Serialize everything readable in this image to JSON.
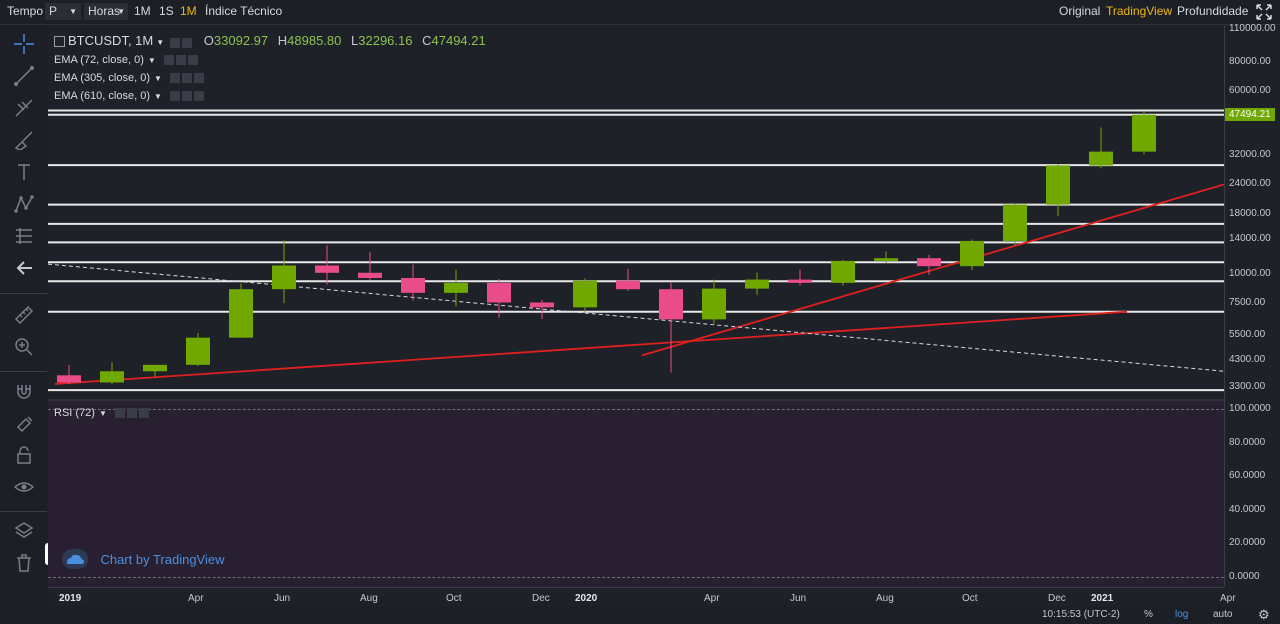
{
  "toolbar": {
    "tempo": "Tempo",
    "interval_value": "P",
    "horas": "Horas",
    "btn_1m_lower": "1M",
    "btn_1s": "1S",
    "btn_1m_active": "1M",
    "indice": "Índice Técnico",
    "original": "Original",
    "tradingview": "TradingView",
    "profundidade": "Profundidade"
  },
  "legend": {
    "symbol": "BTCUSDT, 1M",
    "o_label": "O",
    "o_value": "33092.97",
    "h_label": "H",
    "h_value": "48985.80",
    "l_label": "L",
    "l_value": "32296.16",
    "c_label": "C",
    "c_value": "47494.21",
    "ema1": "EMA (72, close, 0)",
    "ema2": "EMA (305, close, 0)",
    "ema3": "EMA (610, close, 0)",
    "rsi": "RSI (72)"
  },
  "price_axis": [
    "110000.00",
    "80000.00",
    "60000.00",
    "47494.21",
    "32000.00",
    "24000.00",
    "18000.00",
    "14000.00",
    "10000.00",
    "7500.00",
    "5500.00",
    "4300.00",
    "3300.00"
  ],
  "rsi_axis": [
    "100.0000",
    "80.0000",
    "60.0000",
    "40.0000",
    "20.0000",
    "0.0000"
  ],
  "time_axis": [
    {
      "label": "2019",
      "bold": true
    },
    {
      "label": "Apr",
      "bold": false
    },
    {
      "label": "Jun",
      "bold": false
    },
    {
      "label": "Aug",
      "bold": false
    },
    {
      "label": "Oct",
      "bold": false
    },
    {
      "label": "Dec",
      "bold": false
    },
    {
      "label": "2020",
      "bold": true
    },
    {
      "label": "Apr",
      "bold": false
    },
    {
      "label": "Jun",
      "bold": false
    },
    {
      "label": "Aug",
      "bold": false
    },
    {
      "label": "Oct",
      "bold": false
    },
    {
      "label": "Dec",
      "bold": false
    },
    {
      "label": "2021",
      "bold": true
    },
    {
      "label": "Apr",
      "bold": false
    }
  ],
  "bottom": {
    "clock": "10:15:53 (UTC-2)",
    "percent": "%",
    "log": "log",
    "auto": "auto"
  },
  "watermark": "Chart by TradingView",
  "colors": {
    "up": "#70a800",
    "down": "#ea4c89",
    "accent": "#f0b90b",
    "price_label_bg": "#70a800",
    "trendline": "#e0201e",
    "hline": "#e8e8e8"
  },
  "chart_data": {
    "type": "candlestick",
    "title": "BTCUSDT, 1M",
    "y_scale": "log",
    "series": [
      {
        "date": "2019-01",
        "o": 3700,
        "h": 4100,
        "l": 3400,
        "c": 3450
      },
      {
        "date": "2019-02",
        "o": 3450,
        "h": 4200,
        "l": 3400,
        "c": 3850
      },
      {
        "date": "2019-03",
        "o": 3850,
        "h": 4100,
        "l": 3650,
        "c": 4100
      },
      {
        "date": "2019-04",
        "o": 4100,
        "h": 5600,
        "l": 4050,
        "c": 5350
      },
      {
        "date": "2019-05",
        "o": 5350,
        "h": 9100,
        "l": 5350,
        "c": 8600
      },
      {
        "date": "2019-06",
        "o": 8600,
        "h": 13900,
        "l": 7500,
        "c": 10850
      },
      {
        "date": "2019-07",
        "o": 10850,
        "h": 13200,
        "l": 9000,
        "c": 10100
      },
      {
        "date": "2019-08",
        "o": 10100,
        "h": 12400,
        "l": 9400,
        "c": 9600
      },
      {
        "date": "2019-09",
        "o": 9600,
        "h": 10950,
        "l": 7700,
        "c": 8300
      },
      {
        "date": "2019-10",
        "o": 8300,
        "h": 10400,
        "l": 7300,
        "c": 9150
      },
      {
        "date": "2019-11",
        "o": 9150,
        "h": 9500,
        "l": 6500,
        "c": 7550
      },
      {
        "date": "2019-12",
        "o": 7550,
        "h": 7750,
        "l": 6430,
        "c": 7200
      },
      {
        "date": "2020-01",
        "o": 7200,
        "h": 9550,
        "l": 6850,
        "c": 9350
      },
      {
        "date": "2020-02",
        "o": 9350,
        "h": 10500,
        "l": 8450,
        "c": 8600
      },
      {
        "date": "2020-03",
        "o": 8600,
        "h": 9200,
        "l": 3800,
        "c": 6400
      },
      {
        "date": "2020-04",
        "o": 6400,
        "h": 9450,
        "l": 6150,
        "c": 8650
      },
      {
        "date": "2020-05",
        "o": 8650,
        "h": 10100,
        "l": 8150,
        "c": 9450
      },
      {
        "date": "2020-06",
        "o": 9450,
        "h": 10400,
        "l": 8900,
        "c": 9150
      },
      {
        "date": "2020-07",
        "o": 9150,
        "h": 11450,
        "l": 8900,
        "c": 11350
      },
      {
        "date": "2020-08",
        "o": 11350,
        "h": 12470,
        "l": 11100,
        "c": 11650
      },
      {
        "date": "2020-09",
        "o": 11650,
        "h": 12050,
        "l": 9880,
        "c": 10780
      },
      {
        "date": "2020-10",
        "o": 10780,
        "h": 14000,
        "l": 10370,
        "c": 13800
      },
      {
        "date": "2020-11",
        "o": 13800,
        "h": 19860,
        "l": 13200,
        "c": 19700
      },
      {
        "date": "2020-12",
        "o": 19700,
        "h": 29300,
        "l": 17600,
        "c": 28900
      },
      {
        "date": "2021-01",
        "o": 28900,
        "h": 41950,
        "l": 28130,
        "c": 33092.97
      },
      {
        "date": "2021-02",
        "o": 33092.97,
        "h": 48985.8,
        "l": 32296.16,
        "c": 47494.21
      }
    ],
    "horizontal_levels": [
      47494,
      49500,
      29000,
      19700,
      16300,
      13600,
      11200,
      9300,
      6900,
      3200
    ],
    "ylim": [
      3000,
      115000
    ]
  }
}
